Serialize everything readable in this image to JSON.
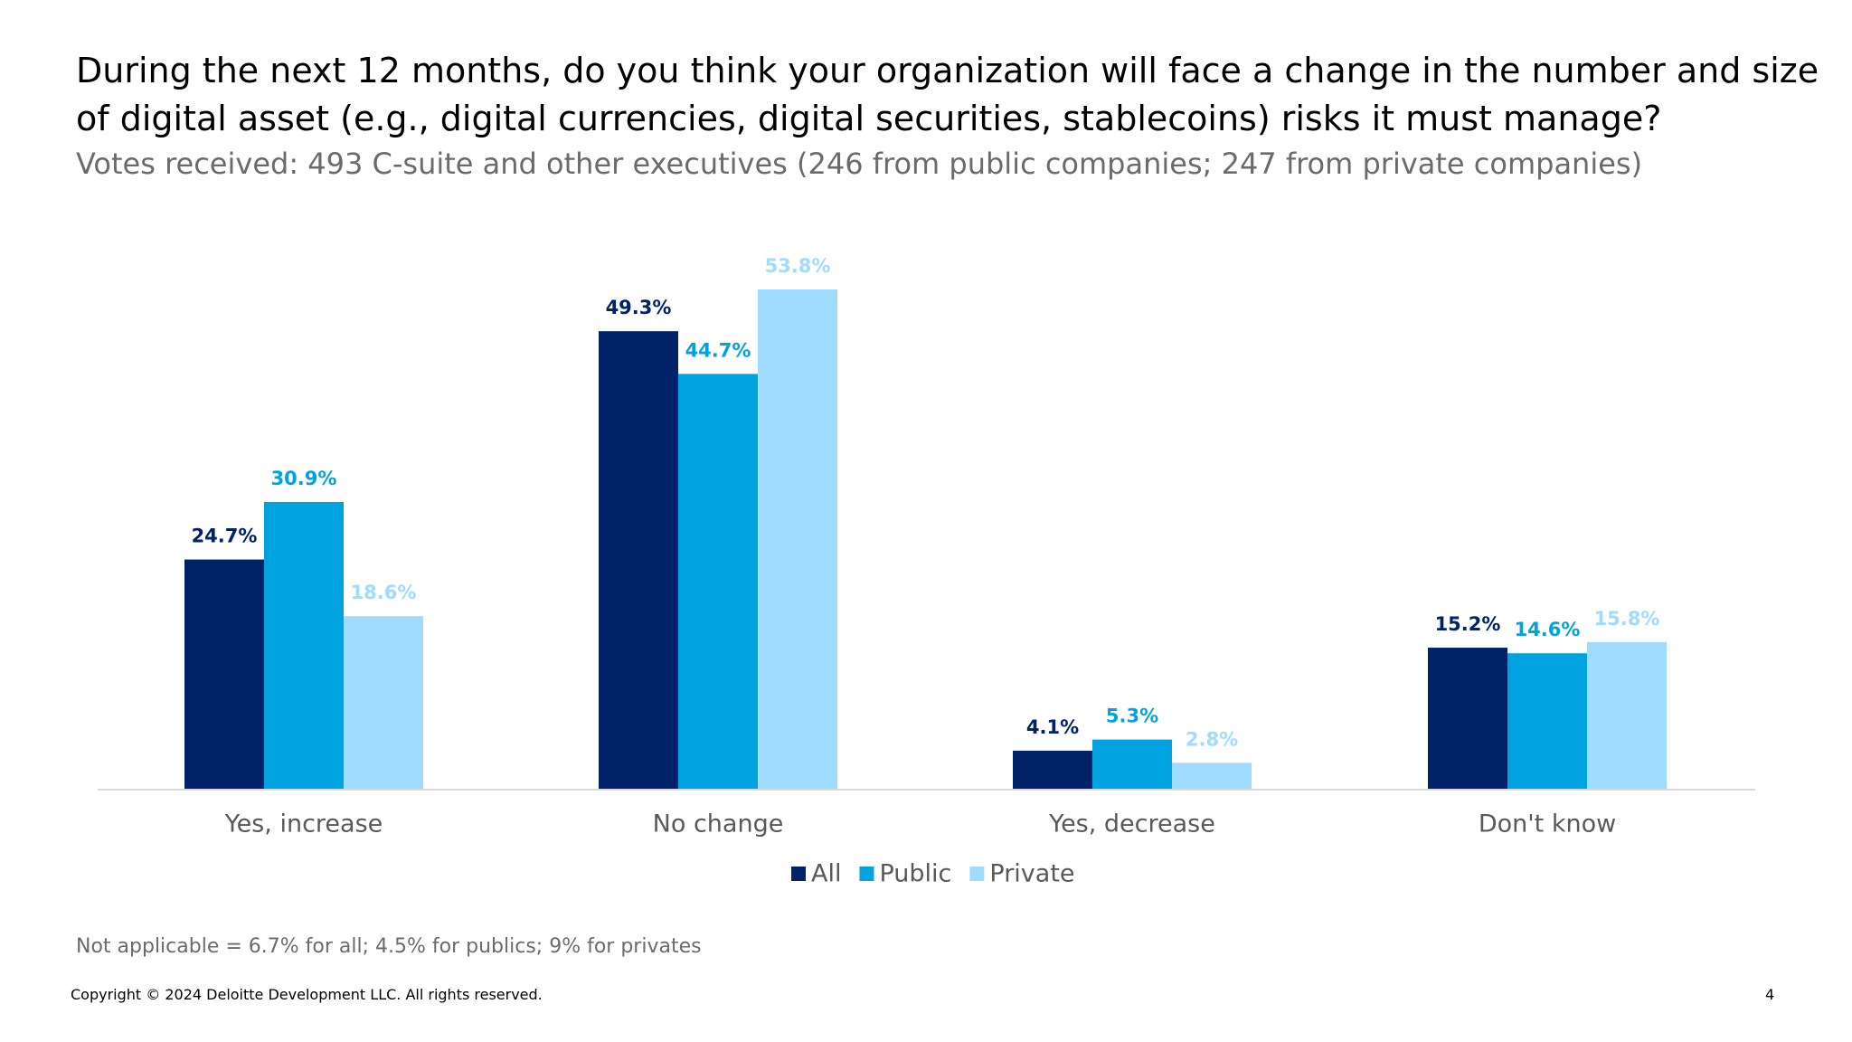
{
  "chart_data": {
    "type": "bar",
    "title": "During the next 12 months, do you think your organization will face a change in the number and size of digital asset (e.g., digital currencies, digital securities, stablecoins) risks it must manage?",
    "subtitle": "Votes received: 493 C-suite and other executives (246 from public companies; 247 from private companies)",
    "categories": [
      "Yes, increase",
      "No change",
      "Yes, decrease",
      "Don't know"
    ],
    "series": [
      {
        "name": "All",
        "color": "#012169",
        "values": [
          24.7,
          49.3,
          4.1,
          15.2
        ],
        "value_labels": [
          "24.7%",
          "49.3%",
          "4.1%",
          "15.2%"
        ]
      },
      {
        "name": "Public",
        "color": "#00a3e0",
        "values": [
          30.9,
          44.7,
          5.3,
          14.6
        ],
        "value_labels": [
          "30.9%",
          "44.7%",
          "5.3%",
          "14.6%"
        ]
      },
      {
        "name": "Private",
        "color": "#a0dcff",
        "values": [
          18.6,
          53.8,
          2.8,
          15.8
        ],
        "value_labels": [
          "18.6%",
          "53.8%",
          "2.8%",
          "15.8%"
        ]
      }
    ],
    "footnote": "Not applicable = 6.7% for all; 4.5% for publics; 9% for privates",
    "copyright": "Copyright © 2024 Deloitte Development LLC. All rights reserved.",
    "page_number": "4"
  }
}
